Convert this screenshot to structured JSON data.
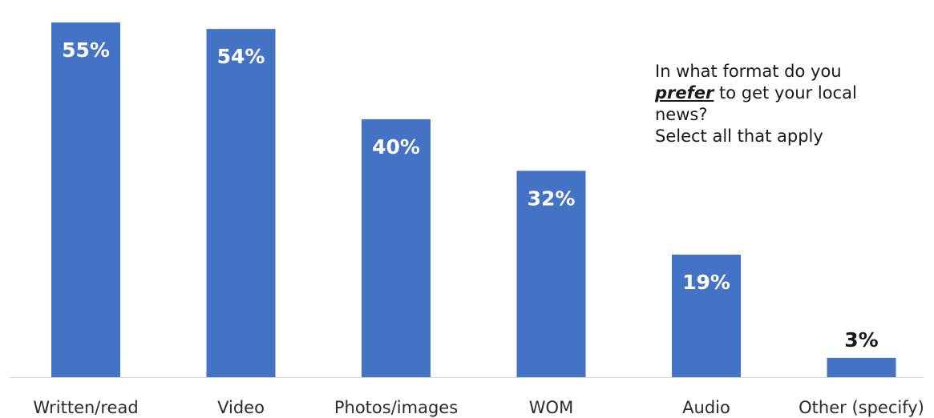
{
  "chart_data": {
    "type": "bar",
    "categories": [
      "Written/read",
      "Video",
      "Photos/images",
      "WOM",
      "Audio",
      "Other (specify)"
    ],
    "values": [
      55,
      54,
      40,
      32,
      19,
      3
    ],
    "value_labels": [
      "55%",
      "54%",
      "40%",
      "32%",
      "19%",
      "3%"
    ],
    "ylim": [
      0,
      57
    ],
    "bar_color": "#4472c4",
    "inside_label_color": "#ffffff",
    "outside_label_color": "#1a1a1a",
    "grid": false,
    "legend": "none"
  },
  "question": {
    "line1": "In what format do you",
    "emphasis": "prefer",
    "line2_rest": "to get your local",
    "line3": "news?",
    "line4": "Select all that apply"
  }
}
